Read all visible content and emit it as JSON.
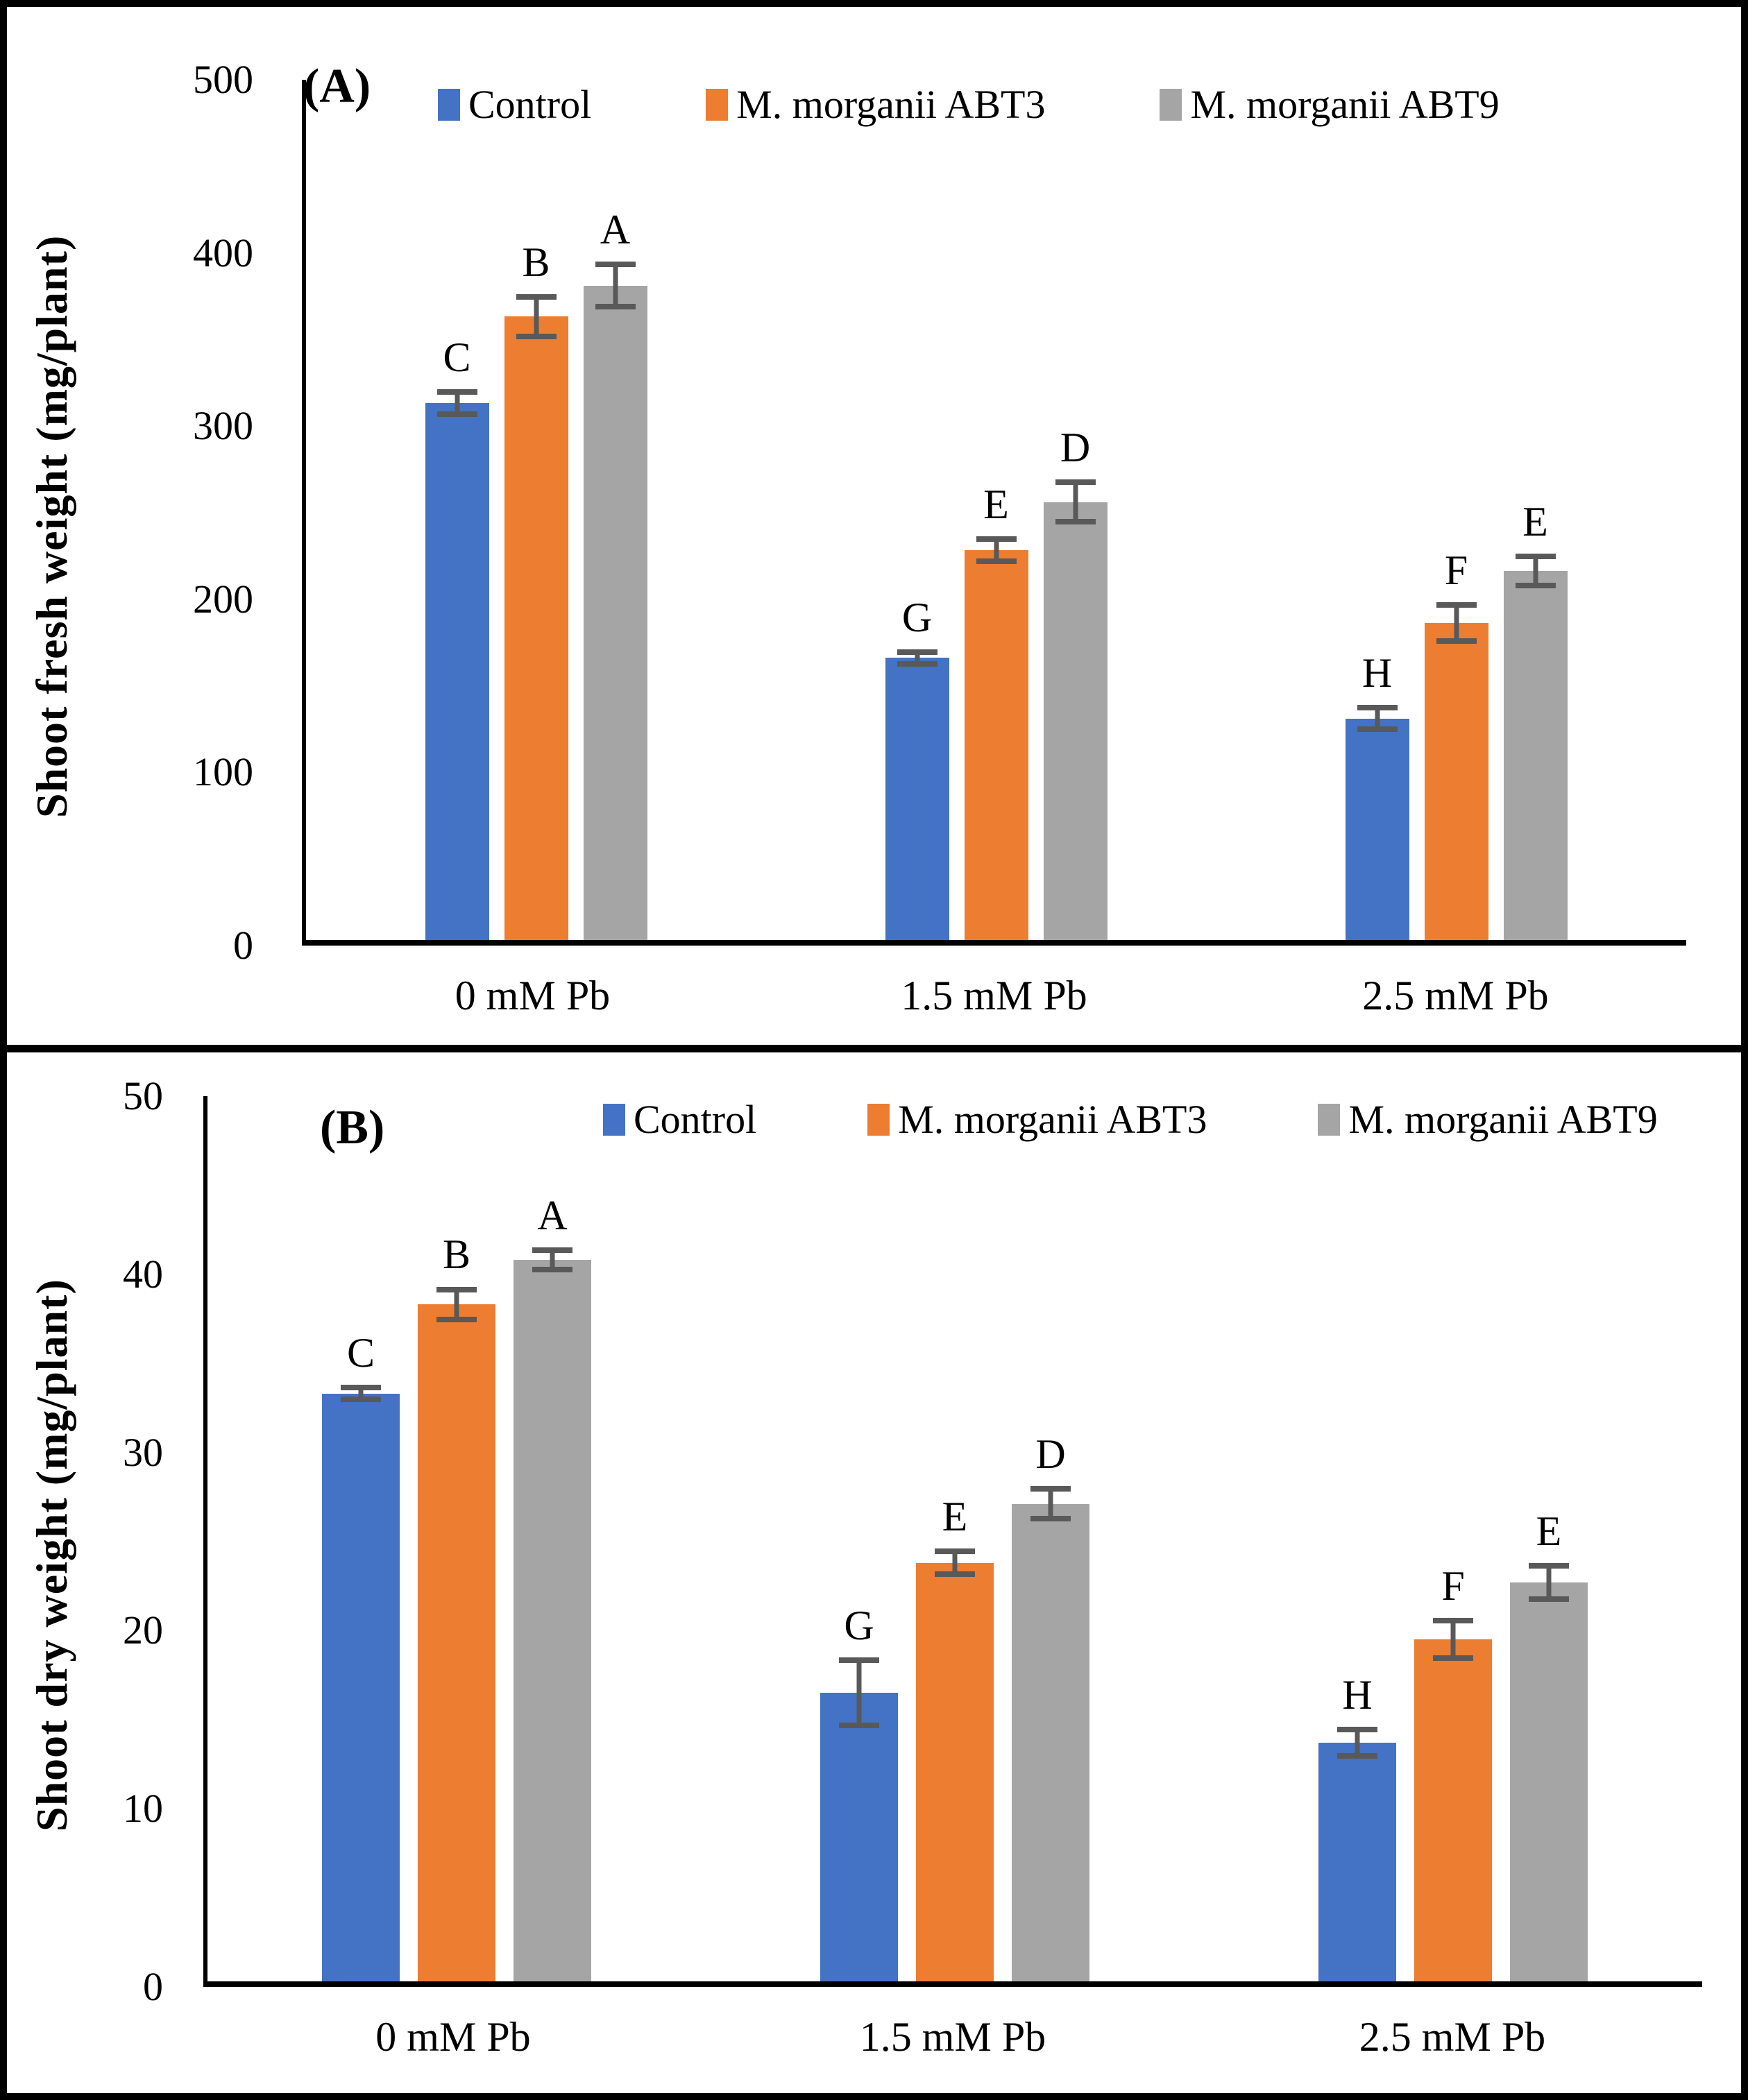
{
  "figure": {
    "border_color": "#000000",
    "background": "#ffffff",
    "error_bar_color": "#595959"
  },
  "chart_data": [
    {
      "id": "A",
      "type": "bar",
      "tag": "(A)",
      "ylabel": "Shoot fresh weight (mg/plant)",
      "ylim": [
        0,
        500
      ],
      "yticks": [
        0,
        100,
        200,
        300,
        400,
        500
      ],
      "grid": false,
      "legend_position": "top",
      "categories": [
        "0 mM Pb",
        "1.5 mM Pb",
        "2.5 mM Pb"
      ],
      "series": [
        {
          "name": "Control",
          "color": "#4472C4",
          "values": [
            310,
            163,
            128
          ],
          "errors": [
            8,
            5,
            8
          ],
          "letters": [
            "C",
            "G",
            "H"
          ]
        },
        {
          "name": "M. morganii ABT3",
          "color": "#ED7D31",
          "values": [
            360,
            225,
            183
          ],
          "errors": [
            13,
            8,
            12
          ],
          "letters": [
            "B",
            "E",
            "F"
          ]
        },
        {
          "name": "M. morganii  ABT9",
          "color": "#A5A5A5",
          "values": [
            378,
            253,
            213
          ],
          "errors": [
            14,
            13,
            10
          ],
          "letters": [
            "A",
            "D",
            "E"
          ]
        }
      ]
    },
    {
      "id": "B",
      "type": "bar",
      "tag": "(B)",
      "ylabel": "Shoot dry weight (mg/plant)",
      "ylim": [
        0,
        50
      ],
      "yticks": [
        0,
        10,
        20,
        30,
        40,
        50
      ],
      "grid": false,
      "legend_position": "top",
      "categories": [
        "0 mM Pb",
        "1.5 mM Pb",
        "2.5 mM Pb"
      ],
      "series": [
        {
          "name": "Control",
          "color": "#4472C4",
          "values": [
            33,
            16.2,
            13.4
          ],
          "errors": [
            0.5,
            2,
            0.9
          ],
          "letters": [
            "C",
            "G",
            "H"
          ]
        },
        {
          "name": "M. morganii ABT3",
          "color": "#ED7D31",
          "values": [
            38,
            23.5,
            19.2
          ],
          "errors": [
            1,
            0.8,
            1.2
          ],
          "letters": [
            "B",
            "E",
            "F"
          ]
        },
        {
          "name": "M. morganii  ABT9",
          "color": "#A5A5A5",
          "values": [
            40.5,
            26.8,
            22.4
          ],
          "errors": [
            0.7,
            1,
            1.1
          ],
          "letters": [
            "A",
            "D",
            "E"
          ]
        }
      ]
    }
  ]
}
